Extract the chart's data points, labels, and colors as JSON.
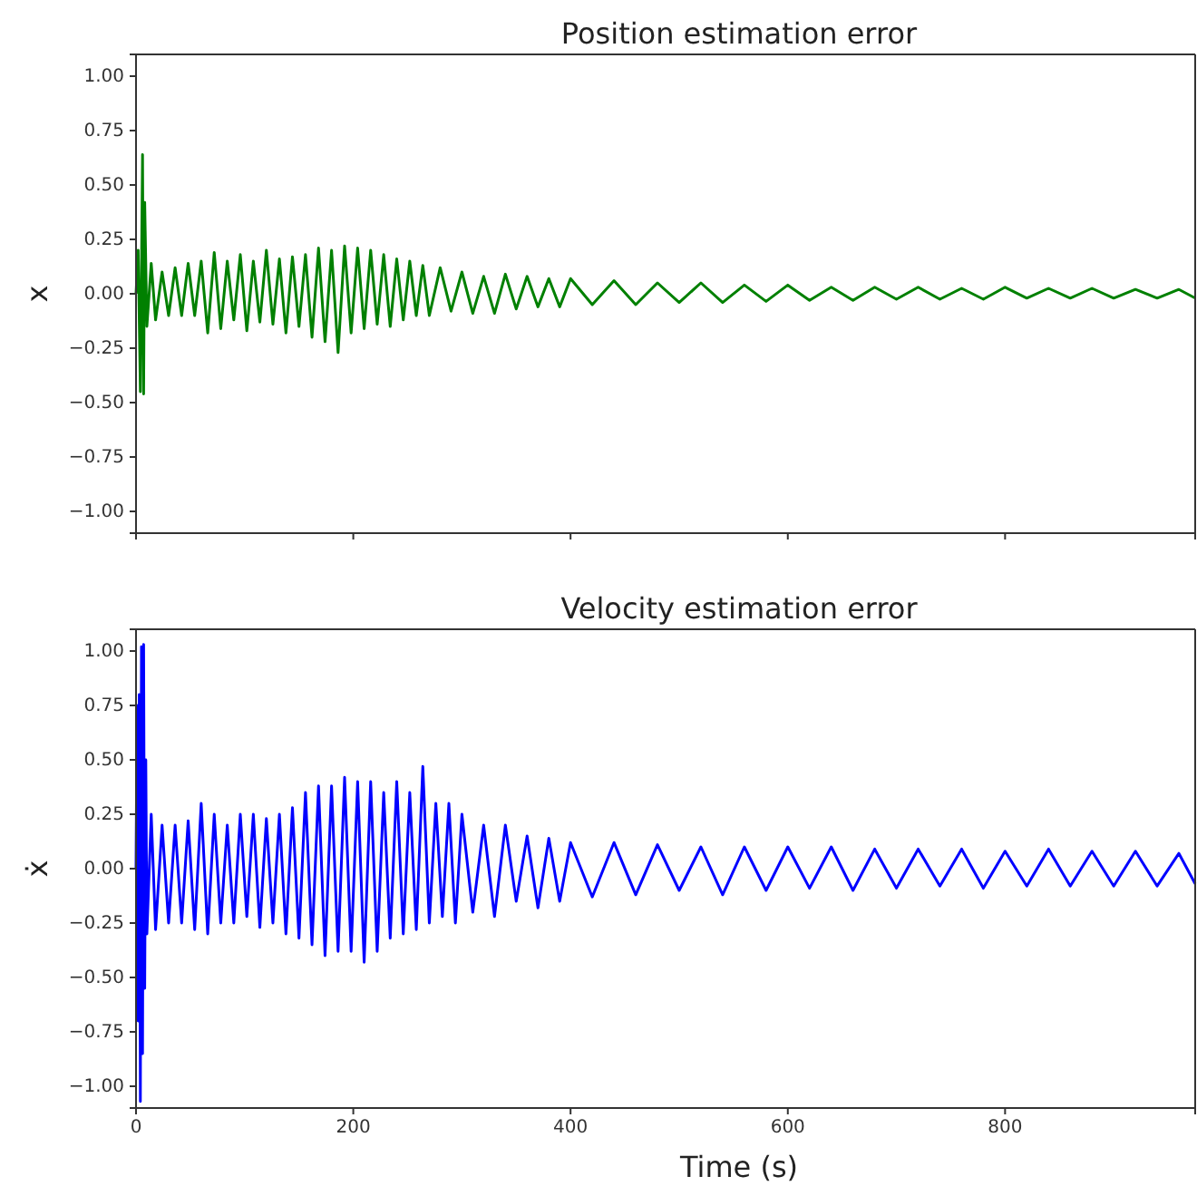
{
  "chart_data": [
    {
      "type": "line",
      "title": "Position estimation error",
      "ylabel": "x",
      "xlim": [
        0,
        975
      ],
      "ylim": [
        -1.1,
        1.1
      ],
      "xticks": [
        0,
        200,
        400,
        600,
        800
      ],
      "yticks": [
        {
          "value": -1,
          "label": "−1.00"
        },
        {
          "value": -0.75,
          "label": "−0.75"
        },
        {
          "value": -0.5,
          "label": "−0.50"
        },
        {
          "value": -0.25,
          "label": "−0.25"
        },
        {
          "value": 0,
          "label": "0.00"
        },
        {
          "value": 0.25,
          "label": "0.25"
        },
        {
          "value": 0.5,
          "label": "0.50"
        },
        {
          "value": 0.75,
          "label": "0.75"
        },
        {
          "value": 1,
          "label": "1.00"
        }
      ],
      "tick_labels": "y",
      "series": [
        {
          "color": "#008000",
          "x": [
            0,
            2,
            4,
            6,
            7,
            8,
            10,
            14,
            18,
            24,
            30,
            36,
            42,
            48,
            54,
            60,
            66,
            72,
            78,
            84,
            90,
            96,
            102,
            108,
            114,
            120,
            126,
            132,
            138,
            144,
            150,
            156,
            162,
            168,
            174,
            180,
            186,
            192,
            198,
            204,
            210,
            216,
            222,
            228,
            234,
            240,
            246,
            252,
            258,
            264,
            270,
            280,
            290,
            300,
            310,
            320,
            330,
            340,
            350,
            360,
            370,
            380,
            390,
            400,
            420,
            440,
            460,
            480,
            500,
            520,
            540,
            560,
            580,
            600,
            620,
            640,
            660,
            680,
            700,
            720,
            740,
            760,
            780,
            800,
            820,
            840,
            860,
            880,
            900,
            920,
            940,
            960,
            975
          ],
          "values": [
            0,
            0.2,
            -0.45,
            0.64,
            -0.46,
            0.42,
            -0.15,
            0.14,
            -0.12,
            0.1,
            -0.1,
            0.12,
            -0.1,
            0.14,
            -0.1,
            0.15,
            -0.18,
            0.19,
            -0.16,
            0.15,
            -0.12,
            0.18,
            -0.17,
            0.15,
            -0.13,
            0.2,
            -0.14,
            0.16,
            -0.18,
            0.17,
            -0.15,
            0.18,
            -0.2,
            0.21,
            -0.22,
            0.2,
            -0.27,
            0.22,
            -0.18,
            0.21,
            -0.16,
            0.2,
            -0.14,
            0.18,
            -0.15,
            0.16,
            -0.12,
            0.15,
            -0.1,
            0.13,
            -0.1,
            0.12,
            -0.08,
            0.1,
            -0.09,
            0.08,
            -0.09,
            0.09,
            -0.07,
            0.08,
            -0.06,
            0.07,
            -0.06,
            0.07,
            -0.05,
            0.06,
            -0.05,
            0.05,
            -0.04,
            0.05,
            -0.04,
            0.04,
            -0.035,
            0.04,
            -0.03,
            0.03,
            -0.03,
            0.03,
            -0.025,
            0.03,
            -0.025,
            0.025,
            -0.025,
            0.03,
            -0.02,
            0.025,
            -0.02,
            0.025,
            -0.02,
            0.02,
            -0.02,
            0.02,
            -0.02
          ]
        }
      ]
    },
    {
      "type": "line",
      "title": "Velocity estimation error",
      "xlabel": "Time (s)",
      "ylabel": "ẋ",
      "xlim": [
        0,
        975
      ],
      "ylim": [
        -1.1,
        1.1
      ],
      "xticks": [
        0,
        200,
        400,
        600,
        800
      ],
      "yticks": [
        {
          "value": -1,
          "label": "−1.00"
        },
        {
          "value": -0.75,
          "label": "−0.75"
        },
        {
          "value": -0.5,
          "label": "−0.50"
        },
        {
          "value": -0.25,
          "label": "−0.25"
        },
        {
          "value": 0,
          "label": "0.00"
        },
        {
          "value": 0.25,
          "label": "0.25"
        },
        {
          "value": 0.5,
          "label": "0.50"
        },
        {
          "value": 0.75,
          "label": "0.75"
        },
        {
          "value": 1,
          "label": "1.00"
        }
      ],
      "series": [
        {
          "color": "#0000ff",
          "x": [
            0,
            1,
            2,
            3,
            4,
            5,
            6,
            7,
            8,
            9,
            10,
            14,
            18,
            24,
            30,
            36,
            42,
            48,
            54,
            60,
            66,
            72,
            78,
            84,
            90,
            96,
            102,
            108,
            114,
            120,
            126,
            132,
            138,
            144,
            150,
            156,
            162,
            168,
            174,
            180,
            186,
            192,
            198,
            204,
            210,
            216,
            222,
            228,
            234,
            240,
            246,
            252,
            258,
            264,
            270,
            276,
            282,
            288,
            294,
            300,
            310,
            320,
            330,
            340,
            350,
            360,
            370,
            380,
            390,
            400,
            420,
            440,
            460,
            480,
            500,
            520,
            540,
            560,
            580,
            600,
            620,
            640,
            660,
            680,
            700,
            720,
            740,
            760,
            780,
            800,
            820,
            840,
            860,
            880,
            900,
            920,
            940,
            960,
            975
          ],
          "values": [
            0,
            0.75,
            -0.7,
            0.8,
            -1.07,
            1.02,
            -0.85,
            1.03,
            -0.55,
            0.5,
            -0.3,
            0.25,
            -0.28,
            0.2,
            -0.25,
            0.2,
            -0.25,
            0.22,
            -0.28,
            0.3,
            -0.3,
            0.25,
            -0.25,
            0.2,
            -0.25,
            0.25,
            -0.22,
            0.25,
            -0.27,
            0.23,
            -0.25,
            0.25,
            -0.3,
            0.28,
            -0.32,
            0.35,
            -0.35,
            0.38,
            -0.4,
            0.38,
            -0.38,
            0.42,
            -0.38,
            0.4,
            -0.43,
            0.4,
            -0.38,
            0.35,
            -0.32,
            0.4,
            -0.3,
            0.35,
            -0.28,
            0.47,
            -0.25,
            0.3,
            -0.22,
            0.3,
            -0.25,
            0.25,
            -0.2,
            0.2,
            -0.22,
            0.2,
            -0.15,
            0.15,
            -0.18,
            0.14,
            -0.15,
            0.12,
            -0.13,
            0.12,
            -0.12,
            0.11,
            -0.1,
            0.1,
            -0.12,
            0.1,
            -0.1,
            0.1,
            -0.09,
            0.1,
            -0.1,
            0.09,
            -0.09,
            0.09,
            -0.08,
            0.09,
            -0.09,
            0.08,
            -0.08,
            0.09,
            -0.08,
            0.08,
            -0.08,
            0.08,
            -0.08,
            0.07,
            -0.07
          ]
        }
      ]
    }
  ]
}
